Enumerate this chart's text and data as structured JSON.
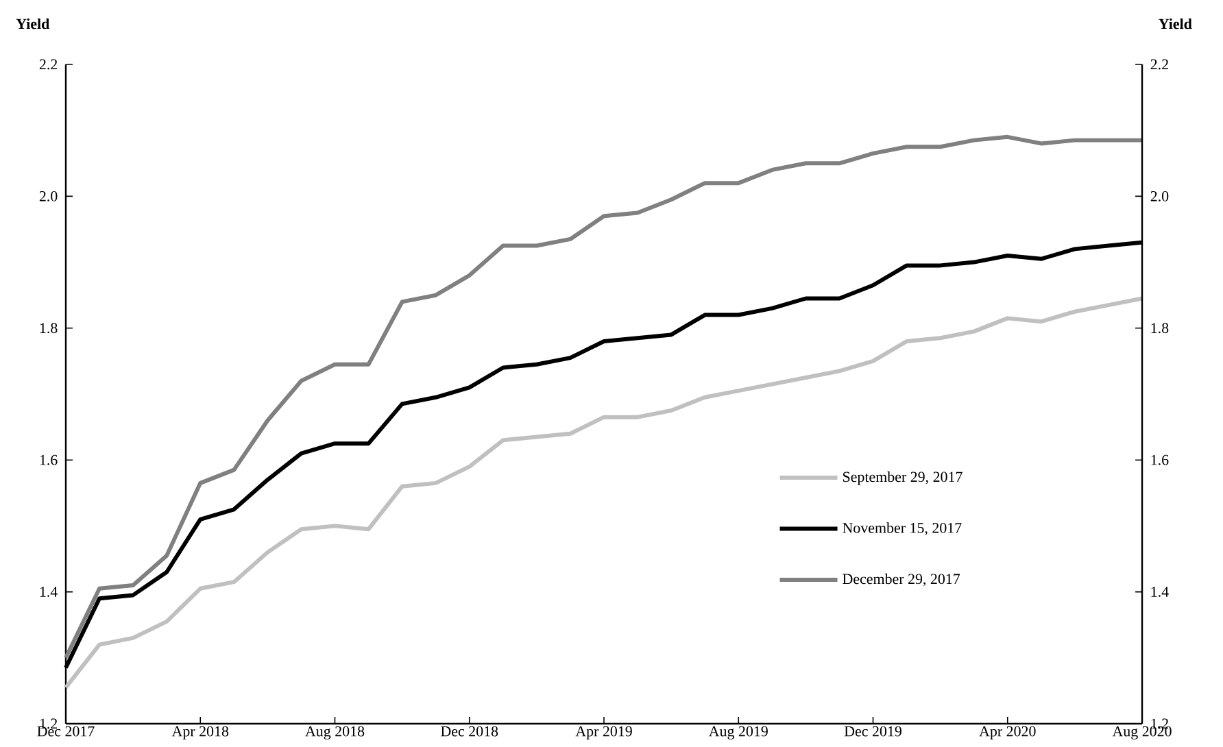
{
  "chart_data": {
    "type": "line",
    "ylabel": "Yield",
    "y2label": "Yield",
    "x": [
      "2017-12",
      "2018-01",
      "2018-02",
      "2018-03",
      "2018-04",
      "2018-05",
      "2018-06",
      "2018-07",
      "2018-08",
      "2018-09",
      "2018-10",
      "2018-11",
      "2018-12",
      "2019-01",
      "2019-02",
      "2019-03",
      "2019-04",
      "2019-05",
      "2019-06",
      "2019-07",
      "2019-08",
      "2019-09",
      "2019-10",
      "2019-11",
      "2019-12",
      "2020-01",
      "2020-02",
      "2020-03",
      "2020-04",
      "2020-05",
      "2020-06",
      "2020-07",
      "2020-08"
    ],
    "series": [
      {
        "name": "September 29, 2017",
        "color": "#c0c0c0",
        "values": [
          1.255,
          1.32,
          1.33,
          1.355,
          1.405,
          1.415,
          1.46,
          1.495,
          1.5,
          1.495,
          1.56,
          1.565,
          1.59,
          1.63,
          1.635,
          1.64,
          1.665,
          1.665,
          1.675,
          1.695,
          1.705,
          1.715,
          1.725,
          1.735,
          1.75,
          1.78,
          1.785,
          1.795,
          1.815,
          1.81,
          1.825,
          1.835,
          1.845
        ]
      },
      {
        "name": "November 15, 2017",
        "color": "#000000",
        "values": [
          1.285,
          1.39,
          1.395,
          1.43,
          1.51,
          1.525,
          1.57,
          1.61,
          1.625,
          1.625,
          1.685,
          1.695,
          1.71,
          1.74,
          1.745,
          1.755,
          1.78,
          1.785,
          1.79,
          1.82,
          1.82,
          1.83,
          1.845,
          1.845,
          1.865,
          1.895,
          1.895,
          1.9,
          1.91,
          1.905,
          1.92,
          1.925,
          1.93
        ]
      },
      {
        "name": "December 29, 2017",
        "color": "#808080",
        "values": [
          1.3,
          1.405,
          1.41,
          1.455,
          1.565,
          1.585,
          1.66,
          1.72,
          1.745,
          1.745,
          1.84,
          1.85,
          1.88,
          1.925,
          1.925,
          1.935,
          1.97,
          1.975,
          1.995,
          2.02,
          2.02,
          2.04,
          2.05,
          2.05,
          2.065,
          2.075,
          2.075,
          2.085,
          2.09,
          2.08,
          2.085,
          2.085,
          2.085
        ]
      }
    ],
    "xlim": [
      "2017-12",
      "2020-08"
    ],
    "xticks": [
      {
        "value": "2017-12",
        "label": "Dec 2017"
      },
      {
        "value": "2018-04",
        "label": "Apr 2018"
      },
      {
        "value": "2018-08",
        "label": "Aug 2018"
      },
      {
        "value": "2018-12",
        "label": "Dec 2018"
      },
      {
        "value": "2019-04",
        "label": "Apr 2019"
      },
      {
        "value": "2019-08",
        "label": "Aug 2019"
      },
      {
        "value": "2019-12",
        "label": "Dec 2019"
      },
      {
        "value": "2020-04",
        "label": "Apr 2020"
      },
      {
        "value": "2020-08",
        "label": "Aug 2020"
      }
    ],
    "ylim": [
      1.2,
      2.2
    ],
    "yticks": [
      {
        "value": 1.2,
        "label": "1.2"
      },
      {
        "value": 1.4,
        "label": "1.4"
      },
      {
        "value": 1.6,
        "label": "1.6"
      },
      {
        "value": 1.8,
        "label": "1.8"
      },
      {
        "value": 2,
        "label": "2.0"
      },
      {
        "value": 2.2,
        "label": "2.2"
      }
    ],
    "y2lim": [
      1.2,
      2.2
    ],
    "y2ticks": [
      {
        "value": 1.2,
        "label": "1.2"
      },
      {
        "value": 1.4,
        "label": "1.4"
      },
      {
        "value": 1.6,
        "label": "1.6"
      },
      {
        "value": 1.8,
        "label": "1.8"
      },
      {
        "value": 2,
        "label": "2.0"
      },
      {
        "value": 2.2,
        "label": "2.2"
      }
    ],
    "legend": "bottom right",
    "grid": false,
    "marker": "none",
    "line_style": "solid"
  }
}
